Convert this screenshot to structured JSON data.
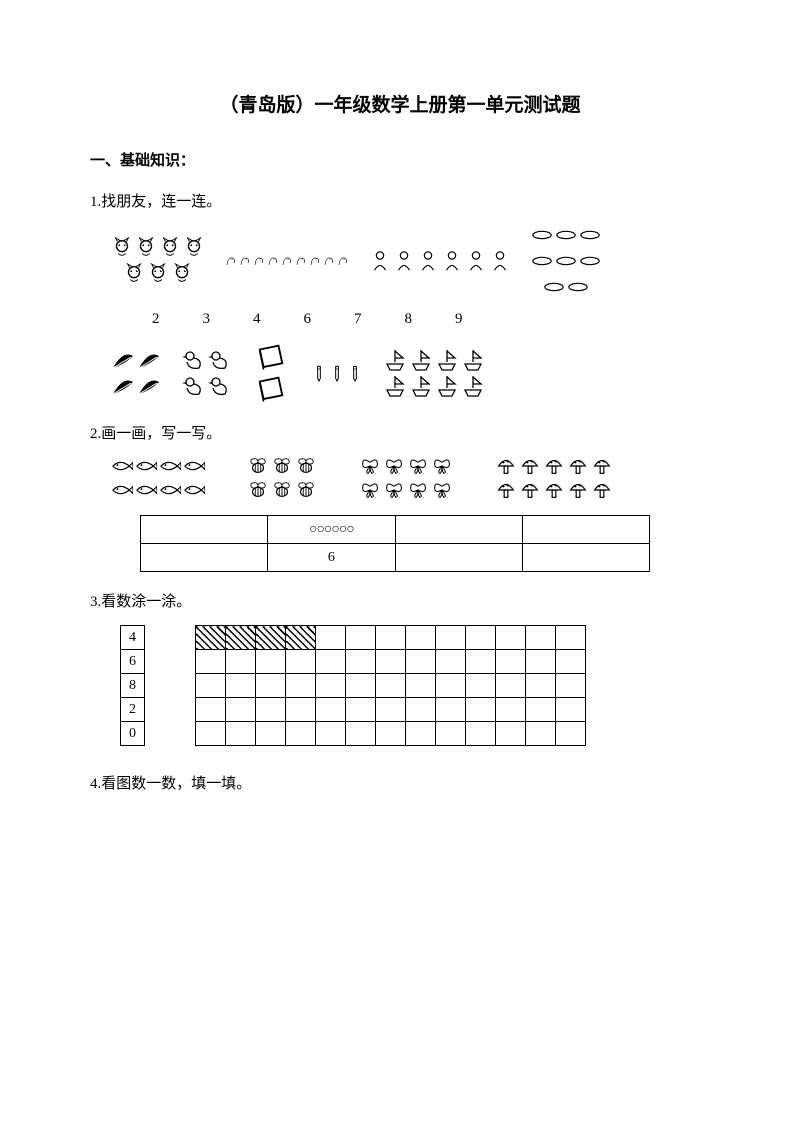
{
  "title": "（青岛版）一年级数学上册第一单元测试题",
  "section1": {
    "header": "一、基础知识："
  },
  "q1": {
    "label": "1.找朋友，连一连。",
    "numbers": [
      "2",
      "3",
      "4",
      "6",
      "7",
      "8",
      "9"
    ],
    "row_top": [
      {
        "name": "cats",
        "count": 7,
        "cols": 4
      },
      {
        "name": "shrimps",
        "count": 9,
        "cols": 9
      },
      {
        "name": "children",
        "count": 6,
        "cols": 6
      },
      {
        "name": "plates",
        "count": 8,
        "cols": 3
      }
    ],
    "row_bottom": [
      {
        "name": "leaves",
        "count": 4,
        "cols": 2
      },
      {
        "name": "ducks",
        "count": 4,
        "cols": 2
      },
      {
        "name": "books",
        "count": 2,
        "cols": 1
      },
      {
        "name": "pencils",
        "count": 3,
        "cols": 3
      },
      {
        "name": "boats",
        "count": 8,
        "cols": 4
      }
    ]
  },
  "q2": {
    "label": "2.画一画，写一写。",
    "images": [
      {
        "name": "fish",
        "count": 8,
        "cols": 4
      },
      {
        "name": "bees",
        "count": 6,
        "cols": 3
      },
      {
        "name": "butterflies",
        "count": 8,
        "cols": 4
      },
      {
        "name": "mushrooms",
        "count": 10,
        "cols": 5
      }
    ],
    "table": {
      "row1": [
        "",
        "○○○○○○",
        "",
        ""
      ],
      "row2": [
        "",
        "6",
        "",
        ""
      ]
    }
  },
  "q3": {
    "label": "3.看数涂一涂。",
    "numbers": [
      "4",
      "6",
      "8",
      "2",
      "0"
    ],
    "grid": {
      "rows": 5,
      "cols": 13,
      "hatched_row": 0,
      "hatched_count": 4
    }
  },
  "q4": {
    "label": "4.看图数一数，填一填。"
  },
  "colors": {
    "text": "#000000",
    "bg": "#ffffff",
    "border": "#000000"
  }
}
